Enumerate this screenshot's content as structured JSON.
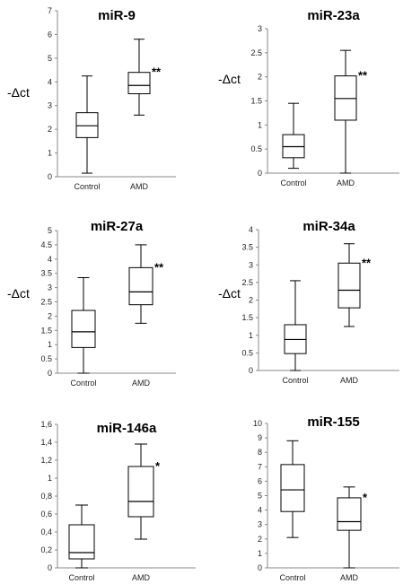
{
  "chart_data": [
    {
      "type": "box",
      "title": "miR-9",
      "ylabel": "-Δct",
      "ylim": [
        0,
        7
      ],
      "yticks": [
        "0",
        "1",
        "2",
        "3",
        "4",
        "5",
        "6",
        "7"
      ],
      "categories": [
        "Control",
        "AMD"
      ],
      "boxes": [
        {
          "min": 0.15,
          "q1": 1.65,
          "median": 2.15,
          "q3": 2.7,
          "max": 4.25
        },
        {
          "min": 2.6,
          "q1": 3.5,
          "median": 3.85,
          "q3": 4.4,
          "max": 5.8
        }
      ],
      "significance": "**"
    },
    {
      "type": "box",
      "title": "miR-23a",
      "ylabel": "-Δct",
      "ylim": [
        0,
        3
      ],
      "yticks": [
        "0",
        "0.5",
        "1",
        "1.5",
        "2",
        "2.5",
        "3"
      ],
      "categories": [
        "Control",
        "AMD"
      ],
      "boxes": [
        {
          "min": 0.1,
          "q1": 0.32,
          "median": 0.55,
          "q3": 0.8,
          "max": 1.45
        },
        {
          "min": 0.0,
          "q1": 1.1,
          "median": 1.55,
          "q3": 2.02,
          "max": 2.55
        }
      ],
      "significance": "**"
    },
    {
      "type": "box",
      "title": "miR-27a",
      "ylabel": "-Δct",
      "ylim": [
        0,
        5
      ],
      "yticks": [
        "0",
        "0.5",
        "1",
        "1.5",
        "2",
        "2.5",
        "3",
        "3.5",
        "4",
        "4.5",
        "5"
      ],
      "categories": [
        "Control",
        "AMD"
      ],
      "boxes": [
        {
          "min": 0.0,
          "q1": 0.9,
          "median": 1.45,
          "q3": 2.2,
          "max": 3.35
        },
        {
          "min": 1.75,
          "q1": 2.4,
          "median": 2.85,
          "q3": 3.7,
          "max": 4.5
        }
      ],
      "significance": "**"
    },
    {
      "type": "box",
      "title": "miR-34a",
      "ylabel": "-Δct",
      "ylim": [
        0,
        4
      ],
      "yticks": [
        "0",
        "0.5",
        "1",
        "1.5",
        "2",
        "2.5",
        "3",
        "3.5",
        "4"
      ],
      "categories": [
        "Control",
        "AMD"
      ],
      "boxes": [
        {
          "min": 0.0,
          "q1": 0.48,
          "median": 0.88,
          "q3": 1.3,
          "max": 2.55
        },
        {
          "min": 1.25,
          "q1": 1.78,
          "median": 2.28,
          "q3": 3.05,
          "max": 3.6
        }
      ],
      "significance": "**"
    },
    {
      "type": "box",
      "title": "miR-146a",
      "ylabel": "",
      "ylim": [
        0,
        1.6
      ],
      "yticks": [
        "0",
        "0,2",
        "0,4",
        "0,6",
        "0,8",
        "1",
        "1,2",
        "1,4",
        "1,6"
      ],
      "categories": [
        "Control",
        "AMD"
      ],
      "boxes": [
        {
          "min": 0.0,
          "q1": 0.1,
          "median": 0.17,
          "q3": 0.48,
          "max": 0.7
        },
        {
          "min": 0.32,
          "q1": 0.57,
          "median": 0.74,
          "q3": 1.13,
          "max": 1.38
        }
      ],
      "significance": "*"
    },
    {
      "type": "box",
      "title": "miR-155",
      "ylabel": "",
      "ylim": [
        0,
        10
      ],
      "yticks": [
        "0",
        "1",
        "2",
        "3",
        "4",
        "5",
        "6",
        "7",
        "8",
        "9",
        "10"
      ],
      "categories": [
        "Control",
        "AMD"
      ],
      "boxes": [
        {
          "min": 2.1,
          "q1": 3.9,
          "median": 5.4,
          "q3": 7.15,
          "max": 8.8
        },
        {
          "min": 0.0,
          "q1": 2.6,
          "median": 3.2,
          "q3": 4.85,
          "max": 5.6
        }
      ],
      "significance": "*"
    }
  ]
}
